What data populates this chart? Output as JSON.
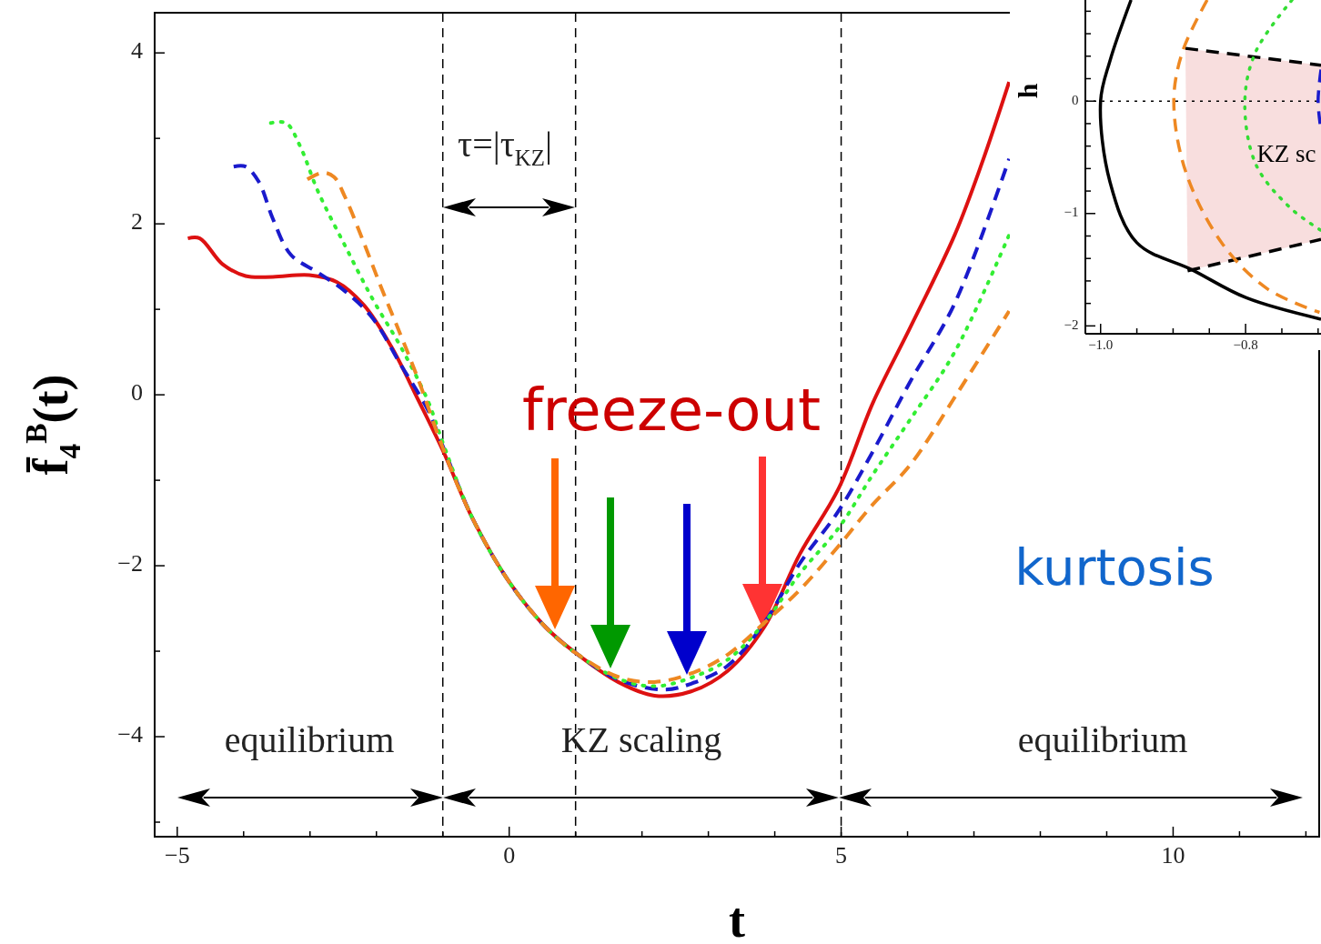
{
  "chart_data": [
    {
      "type": "line",
      "xlabel": "t",
      "ylabel": "f̄$_{4}$$^{B}$(t)",
      "xlim": [
        -5.34,
        12.2
      ],
      "ylim": [
        -5.17,
        4.47
      ],
      "xticks": [
        -5,
        {
          "value": -4,
          "label": null
        },
        {
          "value": -3,
          "label": null
        },
        {
          "value": -2,
          "label": null
        },
        {
          "value": -1,
          "label": null
        },
        0,
        {
          "value": 1,
          "label": null
        },
        {
          "value": 2,
          "label": null
        },
        {
          "value": 3,
          "label": null
        },
        {
          "value": 4,
          "label": null
        },
        5,
        {
          "value": 6,
          "label": null
        },
        {
          "value": 7,
          "label": null
        },
        {
          "value": 8,
          "label": null
        },
        {
          "value": 9,
          "label": null
        },
        10,
        {
          "value": 11,
          "label": null
        },
        {
          "value": 12,
          "label": null
        }
      ],
      "yticks": [
        {
          "value": -5,
          "label": null
        },
        -4,
        {
          "value": -3,
          "label": null
        },
        -2,
        {
          "value": -1,
          "label": null
        },
        0,
        {
          "value": 1,
          "label": null
        },
        2,
        {
          "value": 3,
          "label": null
        },
        4
      ],
      "series": [
        {
          "color": "#dd1111",
          "line_style": "solid",
          "x": [
            -4.84,
            -4.66,
            -4.32,
            -3.97,
            -3.56,
            -3.01,
            -2.6,
            -2.19,
            -1.78,
            -1.37,
            -1.0,
            -0.55,
            0,
            0.55,
            1.0,
            1.64,
            2.19,
            2.74,
            3.29,
            3.84,
            4.38,
            4.96,
            5.48,
            6.03,
            6.71,
            7.12,
            7.53
          ],
          "values": [
            1.83,
            1.83,
            1.53,
            1.39,
            1.38,
            1.4,
            1.32,
            1.05,
            0.57,
            -0.06,
            -0.65,
            -1.45,
            -2.19,
            -2.72,
            -3.02,
            -3.36,
            -3.52,
            -3.47,
            -3.23,
            -2.72,
            -1.86,
            -1.1,
            -0.09,
            0.77,
            1.87,
            2.71,
            3.66
          ]
        },
        {
          "color": "#1a1acc",
          "line_style": "dashed",
          "x": [
            -4.15,
            -3.97,
            -3.77,
            -3.56,
            -3.29,
            -2.88,
            -2.47,
            -2.05,
            -1.64,
            -1.23,
            -1.0,
            -0.55,
            0,
            0.55,
            1.0,
            1.64,
            2.33,
            2.74,
            3.29,
            3.84,
            4.38,
            4.96,
            5.48,
            6.03,
            6.71,
            7.53
          ],
          "values": [
            2.67,
            2.67,
            2.49,
            2.06,
            1.64,
            1.43,
            1.21,
            0.89,
            0.36,
            -0.17,
            -0.6,
            -1.45,
            -2.19,
            -2.72,
            -3.02,
            -3.33,
            -3.45,
            -3.38,
            -3.17,
            -2.67,
            -1.97,
            -1.36,
            -0.66,
            0.14,
            1.07,
            2.76
          ]
        },
        {
          "color": "#33ee33",
          "line_style": "dotted",
          "x": [
            -3.59,
            -3.36,
            -3.15,
            -2.88,
            -2.47,
            -2.05,
            -1.64,
            -1.23,
            -1.0,
            -0.55,
            0,
            0.55,
            1.0,
            1.64,
            2.19,
            2.74,
            3.29,
            3.84,
            4.38,
            4.96,
            5.48,
            6.03,
            6.71,
            7.53
          ],
          "values": [
            3.18,
            3.18,
            2.91,
            2.38,
            1.74,
            1.11,
            0.57,
            -0.06,
            -0.56,
            -1.45,
            -2.19,
            -2.72,
            -3.02,
            -3.32,
            -3.41,
            -3.31,
            -3.1,
            -2.67,
            -2.09,
            -1.56,
            -0.93,
            -0.3,
            0.5,
            1.87
          ]
        },
        {
          "color": "#ee8822",
          "line_style": "dashed",
          "x": [
            -3.04,
            -2.81,
            -2.64,
            -2.47,
            -2.19,
            -1.92,
            -1.64,
            -1.37,
            -1.0,
            -0.55,
            0,
            0.55,
            1.0,
            1.64,
            2.19,
            2.74,
            3.29,
            3.84,
            4.38,
            4.96,
            5.48,
            6.03,
            6.71,
            7.53
          ],
          "values": [
            2.52,
            2.6,
            2.55,
            2.31,
            1.78,
            1.24,
            0.71,
            0.18,
            -0.62,
            -1.45,
            -2.19,
            -2.72,
            -3.02,
            -3.3,
            -3.36,
            -3.26,
            -3.04,
            -2.67,
            -2.28,
            -1.77,
            -1.28,
            -0.83,
            -0.03,
            0.98
          ]
        }
      ],
      "ref_lines": [
        {
          "axis": "x",
          "value": -1,
          "line_style": "dashed",
          "color": "#000000"
        },
        {
          "axis": "x",
          "value": 1,
          "line_style": "dashed",
          "color": "#000000"
        },
        {
          "axis": "x",
          "value": 5,
          "line_style": "dashed",
          "color": "#000000"
        }
      ],
      "annotations": [
        "τ=|τ$_{KZ}$|",
        "freeze-out",
        "equilibrium",
        "KZ scaling",
        "equilibrium",
        "kurtosis"
      ]
    },
    {
      "type": "line",
      "ylabel": "h",
      "xlim": [
        -1.021,
        -0.696
      ],
      "ylim": [
        -2.07,
        0.9
      ],
      "xticks": [
        {
          "value": -1.0,
          "label": "−1.0"
        },
        {
          "value": -0.95,
          "label": null
        },
        {
          "value": -0.9,
          "label": null
        },
        {
          "value": -0.85,
          "label": null
        },
        {
          "value": -0.8,
          "label": "−0.8"
        },
        {
          "value": -0.75,
          "label": null
        },
        {
          "value": -0.7,
          "label": null
        }
      ],
      "yticks": [
        -2,
        {
          "value": -1.8,
          "label": null
        },
        {
          "value": -1.6,
          "label": null
        },
        {
          "value": -1.4,
          "label": null
        },
        {
          "value": -1.2,
          "label": null
        },
        -1,
        {
          "value": -0.8,
          "label": null
        },
        {
          "value": -0.6,
          "label": null
        },
        {
          "value": -0.4,
          "label": null
        },
        {
          "value": -0.2,
          "label": null
        },
        0,
        {
          "value": 0.2,
          "label": null
        },
        {
          "value": 0.4,
          "label": null
        },
        {
          "value": 0.6,
          "label": null
        },
        {
          "value": 0.8,
          "label": null
        }
      ],
      "series": [
        {
          "color": "#000000",
          "line_style": "dashed",
          "x": [
            -0.883,
            -0.696
          ],
          "values": [
            0.47,
            0.32
          ]
        },
        {
          "color": "#000000",
          "line_style": "dashed",
          "x": [
            -0.88,
            -0.696
          ],
          "values": [
            -1.51,
            -1.23
          ]
        },
        {
          "color": "#000000",
          "line_style": "solid",
          "x": [
            -0.958,
            -0.987,
            -1.0,
            -0.987,
            -0.95,
            -0.874,
            -0.799,
            -0.696
          ],
          "values": [
            0.9,
            0.36,
            0,
            -0.72,
            -1.26,
            -1.5,
            -1.75,
            -1.94
          ]
        },
        {
          "color": "#ee8822",
          "line_style": "dashed",
          "x": [
            -0.853,
            -0.887,
            -0.899,
            -0.883,
            -0.833,
            -0.77,
            -0.698
          ],
          "values": [
            0.9,
            0.44,
            0,
            -0.62,
            -1.26,
            -1.67,
            -1.88
          ]
        },
        {
          "color": "#33dd33",
          "line_style": "dotted",
          "x": [
            -0.736,
            -0.786,
            -0.801,
            -0.786,
            -0.74,
            -0.696
          ],
          "values": [
            0.9,
            0.44,
            0,
            -0.56,
            -0.94,
            -1.15
          ]
        },
        {
          "color": "#1a1acc",
          "line_style": "dashed",
          "x": [
            -0.696,
            -0.7,
            -0.696
          ],
          "values": [
            0.28,
            0,
            -0.26
          ]
        }
      ],
      "ref_lines": [
        {
          "axis": "y",
          "value": 0,
          "line_style": "dotted",
          "color": "#000000"
        }
      ],
      "annotations": [
        "KZ sc"
      ]
    }
  ]
}
